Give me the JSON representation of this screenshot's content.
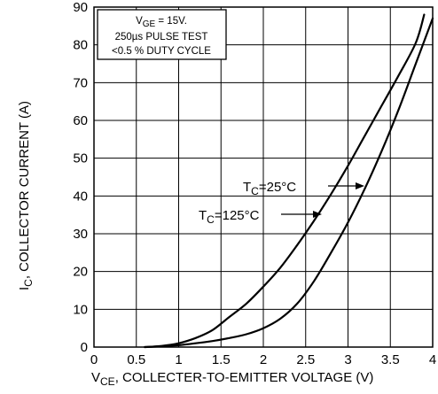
{
  "chart_data": {
    "type": "line",
    "title": "",
    "xlabel": {
      "main": "V",
      "sub": "CE",
      "rest": ", COLLECTER-TO-EMITTER VOLTAGE (V)"
    },
    "ylabel": {
      "main": "I",
      "sub": "C",
      "rest": ", COLLECTOR CURRENT (A)"
    },
    "xlim": [
      0,
      4
    ],
    "ylim": [
      0,
      90
    ],
    "x_ticks": [
      0,
      0.5,
      1,
      1.5,
      2,
      2.5,
      3,
      3.5,
      4
    ],
    "x_tick_labels": [
      "0",
      "0.5",
      "1",
      "1.5",
      "2",
      "2.5",
      "3",
      "3.5",
      "4"
    ],
    "y_ticks": [
      0,
      10,
      20,
      30,
      40,
      50,
      60,
      70,
      80,
      90
    ],
    "y_tick_labels": [
      "0",
      "10",
      "20",
      "30",
      "40",
      "50",
      "60",
      "70",
      "80",
      "90"
    ],
    "grid": true,
    "series": [
      {
        "name": "Tc=25°C",
        "label": {
          "main": "T",
          "sub": "C",
          "rest": "=25°C"
        },
        "x": [
          0.6,
          0.8,
          1.0,
          1.2,
          1.4,
          1.6,
          1.8,
          2.0,
          2.2,
          2.4,
          2.6,
          2.8,
          3.0,
          3.2,
          3.4,
          3.6,
          3.8,
          4.0
        ],
        "y": [
          0,
          0.2,
          0.5,
          1.0,
          1.6,
          2.4,
          3.4,
          5.0,
          7.5,
          11.5,
          17.5,
          25,
          33,
          42,
          52,
          63,
          75,
          87
        ]
      },
      {
        "name": "Tc=125°C",
        "label": {
          "main": "T",
          "sub": "C",
          "rest": "=125°C"
        },
        "x": [
          0.6,
          0.8,
          1.0,
          1.2,
          1.4,
          1.6,
          1.8,
          2.0,
          2.2,
          2.4,
          2.6,
          2.8,
          3.0,
          3.2,
          3.4,
          3.6,
          3.8,
          3.9
        ],
        "y": [
          0,
          0.3,
          1.0,
          2.4,
          4.5,
          8,
          11.5,
          16,
          21,
          27,
          33.5,
          40.5,
          48,
          56,
          64,
          72,
          80.5,
          88
        ]
      }
    ],
    "annotation": {
      "line1": {
        "main": "V",
        "sub": "GE",
        "rest": " = 15V."
      },
      "line2": "250µs PULSE TEST",
      "line3": "<0.5 % DUTY CYCLE"
    },
    "colors": {
      "line": "#000000",
      "grid": "#000000",
      "background": "#ffffff"
    }
  }
}
